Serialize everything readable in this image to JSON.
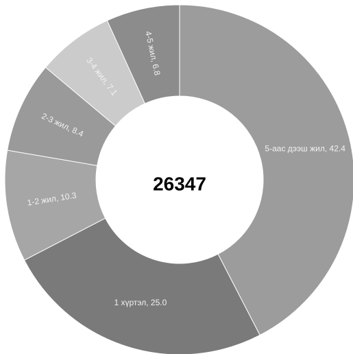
{
  "chart_data": {
    "type": "donut",
    "values": [
      42.4,
      25.0,
      10.3,
      8.4,
      7.1,
      6.8
    ],
    "value_labels": [
      "5-аас дээш жил, 42.4",
      "1 хүртэл, 25.0",
      "1-2 жил, 10.3",
      "2-3 жил, 8.4",
      "3-4 жил, 7.1",
      "4-5 жил, 6.8"
    ],
    "colors": [
      "#9c9c9c",
      "#7a7a7a",
      "#a6a6a6",
      "#9a9a9a",
      "#cbcbcb",
      "#8c8c8c"
    ],
    "center_label": "26347"
  }
}
